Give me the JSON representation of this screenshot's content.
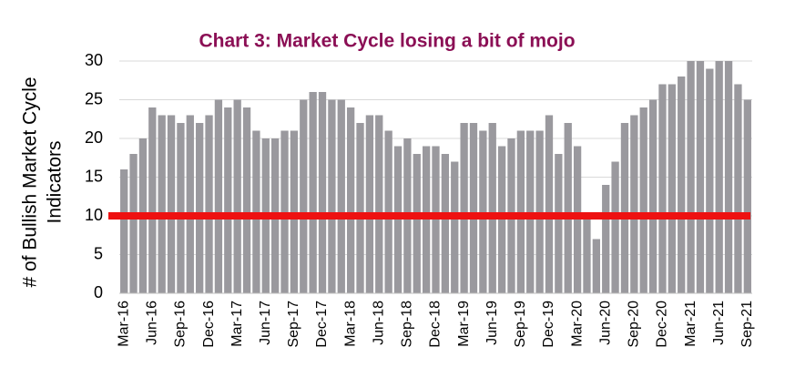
{
  "chart_data": {
    "type": "bar",
    "title": "Chart 3:  Market Cycle losing a bit of mojo",
    "ylabel": [
      "# of Bullish Market Cycle",
      "Indicators"
    ],
    "categories": [
      "Mar-16",
      null,
      null,
      "Jun-16",
      null,
      null,
      "Sep-16",
      null,
      null,
      "Dec-16",
      null,
      null,
      "Mar-17",
      null,
      null,
      "Jun-17",
      null,
      null,
      "Sep-17",
      null,
      null,
      "Dec-17",
      null,
      null,
      "Mar-18",
      null,
      null,
      "Jun-18",
      null,
      null,
      "Sep-18",
      null,
      null,
      "Dec-18",
      null,
      null,
      "Mar-19",
      null,
      null,
      "Jun-19",
      null,
      null,
      "Sep-19",
      null,
      null,
      "Dec-19",
      null,
      null,
      "Mar-20",
      null,
      null,
      "Jun-20",
      null,
      null,
      "Sep-20",
      null,
      null,
      "Dec-20",
      null,
      null,
      "Mar-21",
      null,
      null,
      "Jun-21",
      null,
      null,
      "Sep-21"
    ],
    "values": [
      16,
      18,
      20,
      24,
      23,
      23,
      22,
      23,
      22,
      23,
      25,
      24,
      25,
      24,
      21,
      20,
      20,
      21,
      21,
      25,
      26,
      26,
      25,
      25,
      24,
      22,
      23,
      23,
      21,
      19,
      20,
      18,
      19,
      19,
      18,
      17,
      22,
      22,
      21,
      22,
      19,
      20,
      21,
      21,
      21,
      23,
      18,
      22,
      19,
      10,
      7,
      14,
      17,
      22,
      23,
      24,
      25,
      27,
      27,
      28,
      30,
      30,
      29,
      30,
      30,
      27,
      25
    ],
    "color": "#9a999e",
    "ylim": [
      0,
      30
    ],
    "yticks": [
      0,
      5,
      10,
      15,
      20,
      25,
      30
    ],
    "grid": true,
    "reference_line": {
      "value": 10,
      "color": "#ee1111"
    }
  }
}
